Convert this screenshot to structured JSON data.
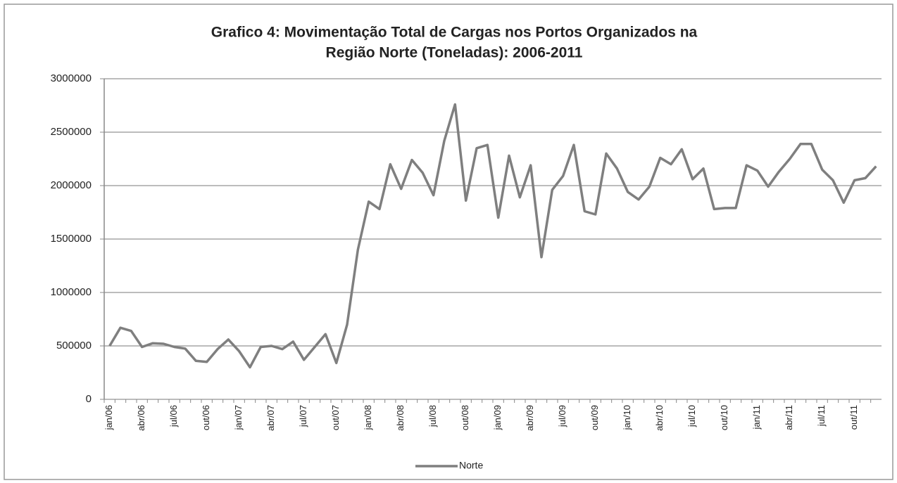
{
  "chart_data": {
    "type": "line",
    "title": [
      "Grafico 4: Movimentação  Total de Cargas nos Portos Organizados na",
      "Região Norte (Toneladas): 2006-2011"
    ],
    "categories": [
      "jan/06",
      null,
      null,
      "abr/06",
      null,
      null,
      "jul/06",
      null,
      null,
      "out/06",
      null,
      null,
      "jan/07",
      null,
      null,
      "abr/07",
      null,
      null,
      "jul/07",
      null,
      null,
      "out/07",
      null,
      null,
      "jan/08",
      null,
      null,
      "abr/08",
      null,
      null,
      "jul/08",
      null,
      null,
      "out/08",
      null,
      null,
      "jan/09",
      null,
      null,
      "abr/09",
      null,
      null,
      "jul/09",
      null,
      null,
      "out/09",
      null,
      null,
      "jan/10",
      null,
      null,
      "abr/10",
      null,
      null,
      "jul/10",
      null,
      null,
      "out/10",
      null,
      null,
      "jan/11",
      null,
      null,
      "abr/11",
      null,
      null,
      "jul/11",
      null,
      null,
      "out/11",
      null,
      null
    ],
    "series": [
      {
        "name": "Norte",
        "color": "#7f7f7f",
        "values": [
          500000,
          670000,
          640000,
          490000,
          525000,
          520000,
          490000,
          475000,
          360000,
          350000,
          470000,
          560000,
          450000,
          300000,
          490000,
          500000,
          470000,
          540000,
          370000,
          490000,
          610000,
          340000,
          700000,
          1400000,
          1850000,
          1780000,
          2200000,
          1970000,
          2240000,
          2120000,
          1910000,
          2420000,
          2760000,
          1860000,
          2350000,
          2380000,
          1700000,
          2280000,
          1890000,
          2190000,
          1330000,
          1960000,
          2090000,
          2380000,
          1760000,
          1730000,
          2300000,
          2160000,
          1940000,
          1870000,
          1990000,
          2260000,
          2200000,
          2340000,
          2060000,
          2160000,
          1780000,
          1790000,
          1790000,
          2190000,
          2140000,
          1990000,
          2130000,
          2250000,
          2390000,
          2390000,
          2150000,
          2050000,
          1840000,
          2050000,
          2070000,
          2180000
        ]
      }
    ],
    "ylim": [
      0,
      3000000
    ],
    "yticks": [
      0,
      500000,
      1000000,
      1500000,
      2000000,
      2500000,
      3000000
    ],
    "grid": true,
    "legend": "bottom"
  }
}
